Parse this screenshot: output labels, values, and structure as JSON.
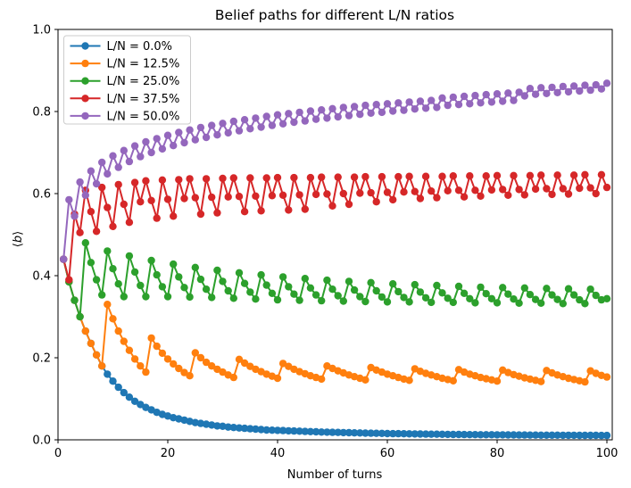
{
  "chart_data": {
    "type": "line",
    "title": "Belief paths for different L/N ratios",
    "xlabel": "Number of turns",
    "ylabel": "⟨b⟩",
    "xlim": [
      0,
      101
    ],
    "ylim": [
      0.0,
      1.0
    ],
    "grid": false,
    "legend_position": "upper left",
    "x_tick_labels": [
      "0",
      "20",
      "40",
      "60",
      "80",
      "100"
    ],
    "x_tick_values": [
      0,
      20,
      40,
      60,
      80,
      100
    ],
    "y_tick_labels": [
      "0.0",
      "0.2",
      "0.4",
      "0.6",
      "0.8",
      "1.0"
    ],
    "y_tick_values": [
      0.0,
      0.2,
      0.4,
      0.6,
      0.8,
      1.0
    ],
    "x": [
      1,
      2,
      3,
      4,
      5,
      6,
      7,
      8,
      9,
      10,
      11,
      12,
      13,
      14,
      15,
      16,
      17,
      18,
      19,
      20,
      21,
      22,
      23,
      24,
      25,
      26,
      27,
      28,
      29,
      30,
      31,
      32,
      33,
      34,
      35,
      36,
      37,
      38,
      39,
      40,
      41,
      42,
      43,
      44,
      45,
      46,
      47,
      48,
      49,
      50,
      51,
      52,
      53,
      54,
      55,
      56,
      57,
      58,
      59,
      60,
      61,
      62,
      63,
      64,
      65,
      66,
      67,
      68,
      69,
      70,
      71,
      72,
      73,
      74,
      75,
      76,
      77,
      78,
      79,
      80,
      81,
      82,
      83,
      84,
      85,
      86,
      87,
      88,
      89,
      90,
      91,
      92,
      93,
      94,
      95,
      96,
      97,
      98,
      99,
      100
    ],
    "series": [
      {
        "label": "L/N = 0.0%",
        "color": "#1f77b4",
        "values": [
          0.44,
          0.385,
          0.34,
          0.3,
          0.265,
          0.235,
          0.207,
          0.18,
          0.16,
          0.143,
          0.128,
          0.115,
          0.104,
          0.094,
          0.086,
          0.079,
          0.073,
          0.067,
          0.062,
          0.058,
          0.054,
          0.051,
          0.048,
          0.045,
          0.042,
          0.04,
          0.038,
          0.036,
          0.034,
          0.033,
          0.031,
          0.03,
          0.029,
          0.028,
          0.027,
          0.026,
          0.025,
          0.024,
          0.0235,
          0.023,
          0.0225,
          0.022,
          0.0215,
          0.021,
          0.0205,
          0.02,
          0.0195,
          0.019,
          0.0187,
          0.0183,
          0.018,
          0.0176,
          0.0173,
          0.017,
          0.0167,
          0.0164,
          0.0161,
          0.0158,
          0.0156,
          0.0153,
          0.0151,
          0.0149,
          0.0147,
          0.0145,
          0.0143,
          0.0141,
          0.0139,
          0.0137,
          0.0136,
          0.0134,
          0.0133,
          0.0131,
          0.013,
          0.0129,
          0.0127,
          0.0126,
          0.0125,
          0.0124,
          0.0123,
          0.0122,
          0.0121,
          0.012,
          0.0119,
          0.0118,
          0.0117,
          0.0116,
          0.0115,
          0.0114,
          0.0114,
          0.0113,
          0.0112,
          0.0111,
          0.0111,
          0.011,
          0.0109,
          0.0109,
          0.0108,
          0.0108,
          0.0107,
          0.0107
        ]
      },
      {
        "label": "L/N = 12.5%",
        "color": "#ff7f0e",
        "values": [
          0.44,
          0.385,
          0.34,
          0.3,
          0.265,
          0.235,
          0.207,
          0.18,
          0.33,
          0.295,
          0.265,
          0.24,
          0.218,
          0.197,
          0.18,
          0.165,
          0.248,
          0.228,
          0.211,
          0.197,
          0.185,
          0.174,
          0.164,
          0.156,
          0.212,
          0.2,
          0.189,
          0.18,
          0.172,
          0.165,
          0.158,
          0.152,
          0.196,
          0.187,
          0.179,
          0.172,
          0.166,
          0.16,
          0.155,
          0.15,
          0.186,
          0.179,
          0.172,
          0.166,
          0.161,
          0.156,
          0.152,
          0.148,
          0.18,
          0.174,
          0.168,
          0.163,
          0.158,
          0.154,
          0.15,
          0.146,
          0.176,
          0.17,
          0.165,
          0.16,
          0.156,
          0.152,
          0.148,
          0.145,
          0.173,
          0.167,
          0.162,
          0.158,
          0.154,
          0.15,
          0.147,
          0.144,
          0.171,
          0.165,
          0.16,
          0.156,
          0.152,
          0.149,
          0.146,
          0.143,
          0.17,
          0.164,
          0.159,
          0.155,
          0.151,
          0.148,
          0.145,
          0.142,
          0.169,
          0.163,
          0.158,
          0.154,
          0.15,
          0.147,
          0.144,
          0.141,
          0.168,
          0.162,
          0.157,
          0.153
        ]
      },
      {
        "label": "L/N = 25.0%",
        "color": "#2ca02c",
        "values": [
          0.44,
          0.385,
          0.34,
          0.3,
          0.48,
          0.432,
          0.39,
          0.353,
          0.46,
          0.417,
          0.38,
          0.349,
          0.448,
          0.409,
          0.376,
          0.349,
          0.437,
          0.402,
          0.373,
          0.349,
          0.428,
          0.397,
          0.371,
          0.348,
          0.42,
          0.391,
          0.367,
          0.347,
          0.413,
          0.386,
          0.363,
          0.345,
          0.407,
          0.381,
          0.36,
          0.343,
          0.402,
          0.377,
          0.357,
          0.341,
          0.397,
          0.373,
          0.355,
          0.34,
          0.393,
          0.37,
          0.353,
          0.339,
          0.389,
          0.367,
          0.351,
          0.338,
          0.386,
          0.365,
          0.349,
          0.337,
          0.383,
          0.363,
          0.348,
          0.336,
          0.38,
          0.361,
          0.347,
          0.336,
          0.378,
          0.36,
          0.346,
          0.335,
          0.376,
          0.358,
          0.345,
          0.335,
          0.374,
          0.357,
          0.344,
          0.334,
          0.372,
          0.356,
          0.344,
          0.334,
          0.371,
          0.355,
          0.343,
          0.333,
          0.37,
          0.354,
          0.342,
          0.333,
          0.369,
          0.353,
          0.342,
          0.332,
          0.368,
          0.353,
          0.341,
          0.332,
          0.367,
          0.352,
          0.341,
          0.344
        ]
      },
      {
        "label": "L/N = 37.5%",
        "color": "#d62728",
        "values": [
          0.44,
          0.39,
          0.55,
          0.505,
          0.608,
          0.556,
          0.508,
          0.615,
          0.566,
          0.52,
          0.622,
          0.574,
          0.53,
          0.627,
          0.58,
          0.631,
          0.583,
          0.54,
          0.633,
          0.586,
          0.545,
          0.634,
          0.588,
          0.636,
          0.59,
          0.55,
          0.636,
          0.591,
          0.553,
          0.637,
          0.592,
          0.638,
          0.593,
          0.556,
          0.638,
          0.594,
          0.558,
          0.638,
          0.595,
          0.639,
          0.596,
          0.56,
          0.639,
          0.597,
          0.562,
          0.639,
          0.598,
          0.64,
          0.599,
          0.57,
          0.64,
          0.6,
          0.574,
          0.64,
          0.601,
          0.641,
          0.602,
          0.58,
          0.641,
          0.603,
          0.585,
          0.641,
          0.604,
          0.642,
          0.605,
          0.588,
          0.642,
          0.606,
          0.59,
          0.642,
          0.607,
          0.643,
          0.608,
          0.592,
          0.643,
          0.608,
          0.594,
          0.643,
          0.609,
          0.644,
          0.61,
          0.596,
          0.644,
          0.61,
          0.597,
          0.644,
          0.611,
          0.645,
          0.612,
          0.598,
          0.645,
          0.612,
          0.599,
          0.645,
          0.613,
          0.646,
          0.614,
          0.6,
          0.646,
          0.615
        ]
      },
      {
        "label": "L/N = 50.0%",
        "color": "#9467bd",
        "values": [
          0.44,
          0.585,
          0.545,
          0.628,
          0.596,
          0.655,
          0.624,
          0.676,
          0.648,
          0.692,
          0.664,
          0.705,
          0.678,
          0.716,
          0.69,
          0.726,
          0.7,
          0.734,
          0.709,
          0.742,
          0.717,
          0.749,
          0.724,
          0.755,
          0.731,
          0.761,
          0.737,
          0.766,
          0.743,
          0.771,
          0.748,
          0.776,
          0.753,
          0.78,
          0.758,
          0.784,
          0.762,
          0.788,
          0.766,
          0.792,
          0.77,
          0.795,
          0.774,
          0.798,
          0.777,
          0.801,
          0.781,
          0.804,
          0.784,
          0.807,
          0.787,
          0.81,
          0.79,
          0.812,
          0.793,
          0.815,
          0.796,
          0.817,
          0.798,
          0.819,
          0.801,
          0.821,
          0.803,
          0.823,
          0.806,
          0.825,
          0.808,
          0.827,
          0.81,
          0.833,
          0.815,
          0.835,
          0.817,
          0.837,
          0.819,
          0.839,
          0.821,
          0.841,
          0.823,
          0.843,
          0.825,
          0.845,
          0.827,
          0.847,
          0.838,
          0.856,
          0.842,
          0.858,
          0.844,
          0.859,
          0.846,
          0.861,
          0.848,
          0.862,
          0.85,
          0.864,
          0.852,
          0.865,
          0.855,
          0.869
        ]
      }
    ]
  }
}
